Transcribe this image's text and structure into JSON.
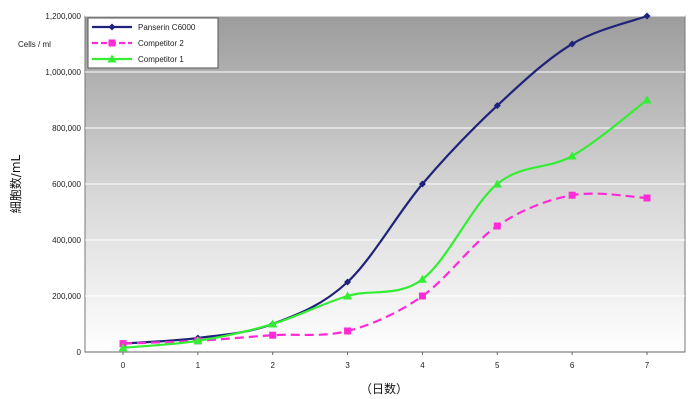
{
  "chart_data": {
    "type": "line",
    "x": [
      0,
      1,
      2,
      3,
      4,
      5,
      6,
      7
    ],
    "x_ticks": [
      "0",
      "1",
      "2",
      "3",
      "4",
      "5",
      "6",
      "7"
    ],
    "y_ticks": [
      "0",
      "200,000",
      "400,000",
      "600,000",
      "800,000",
      "1,000,000",
      "1,200,000"
    ],
    "ylim": [
      0,
      1200000
    ],
    "xlabel": "（日数）",
    "ylabel": "細胞数/mL",
    "unit_label": "Cells / ml",
    "grid": "horizontal",
    "legend_position": "top-left",
    "background": "gray-gradient",
    "series": [
      {
        "name": "Panserin C6000",
        "color": "#1f237a",
        "marker": "diamond",
        "dash": "solid",
        "values": [
          30000,
          50000,
          100000,
          250000,
          600000,
          880000,
          1100000,
          1200000
        ]
      },
      {
        "name": "Competitor 2",
        "color": "#ff2bd6",
        "marker": "square",
        "dash": "dashed",
        "values": [
          30000,
          40000,
          60000,
          75000,
          200000,
          450000,
          560000,
          550000
        ]
      },
      {
        "name": "Competitor 1",
        "color": "#33ee33",
        "marker": "triangle",
        "dash": "solid",
        "values": [
          15000,
          40000,
          100000,
          200000,
          260000,
          600000,
          700000,
          900000
        ]
      }
    ]
  }
}
